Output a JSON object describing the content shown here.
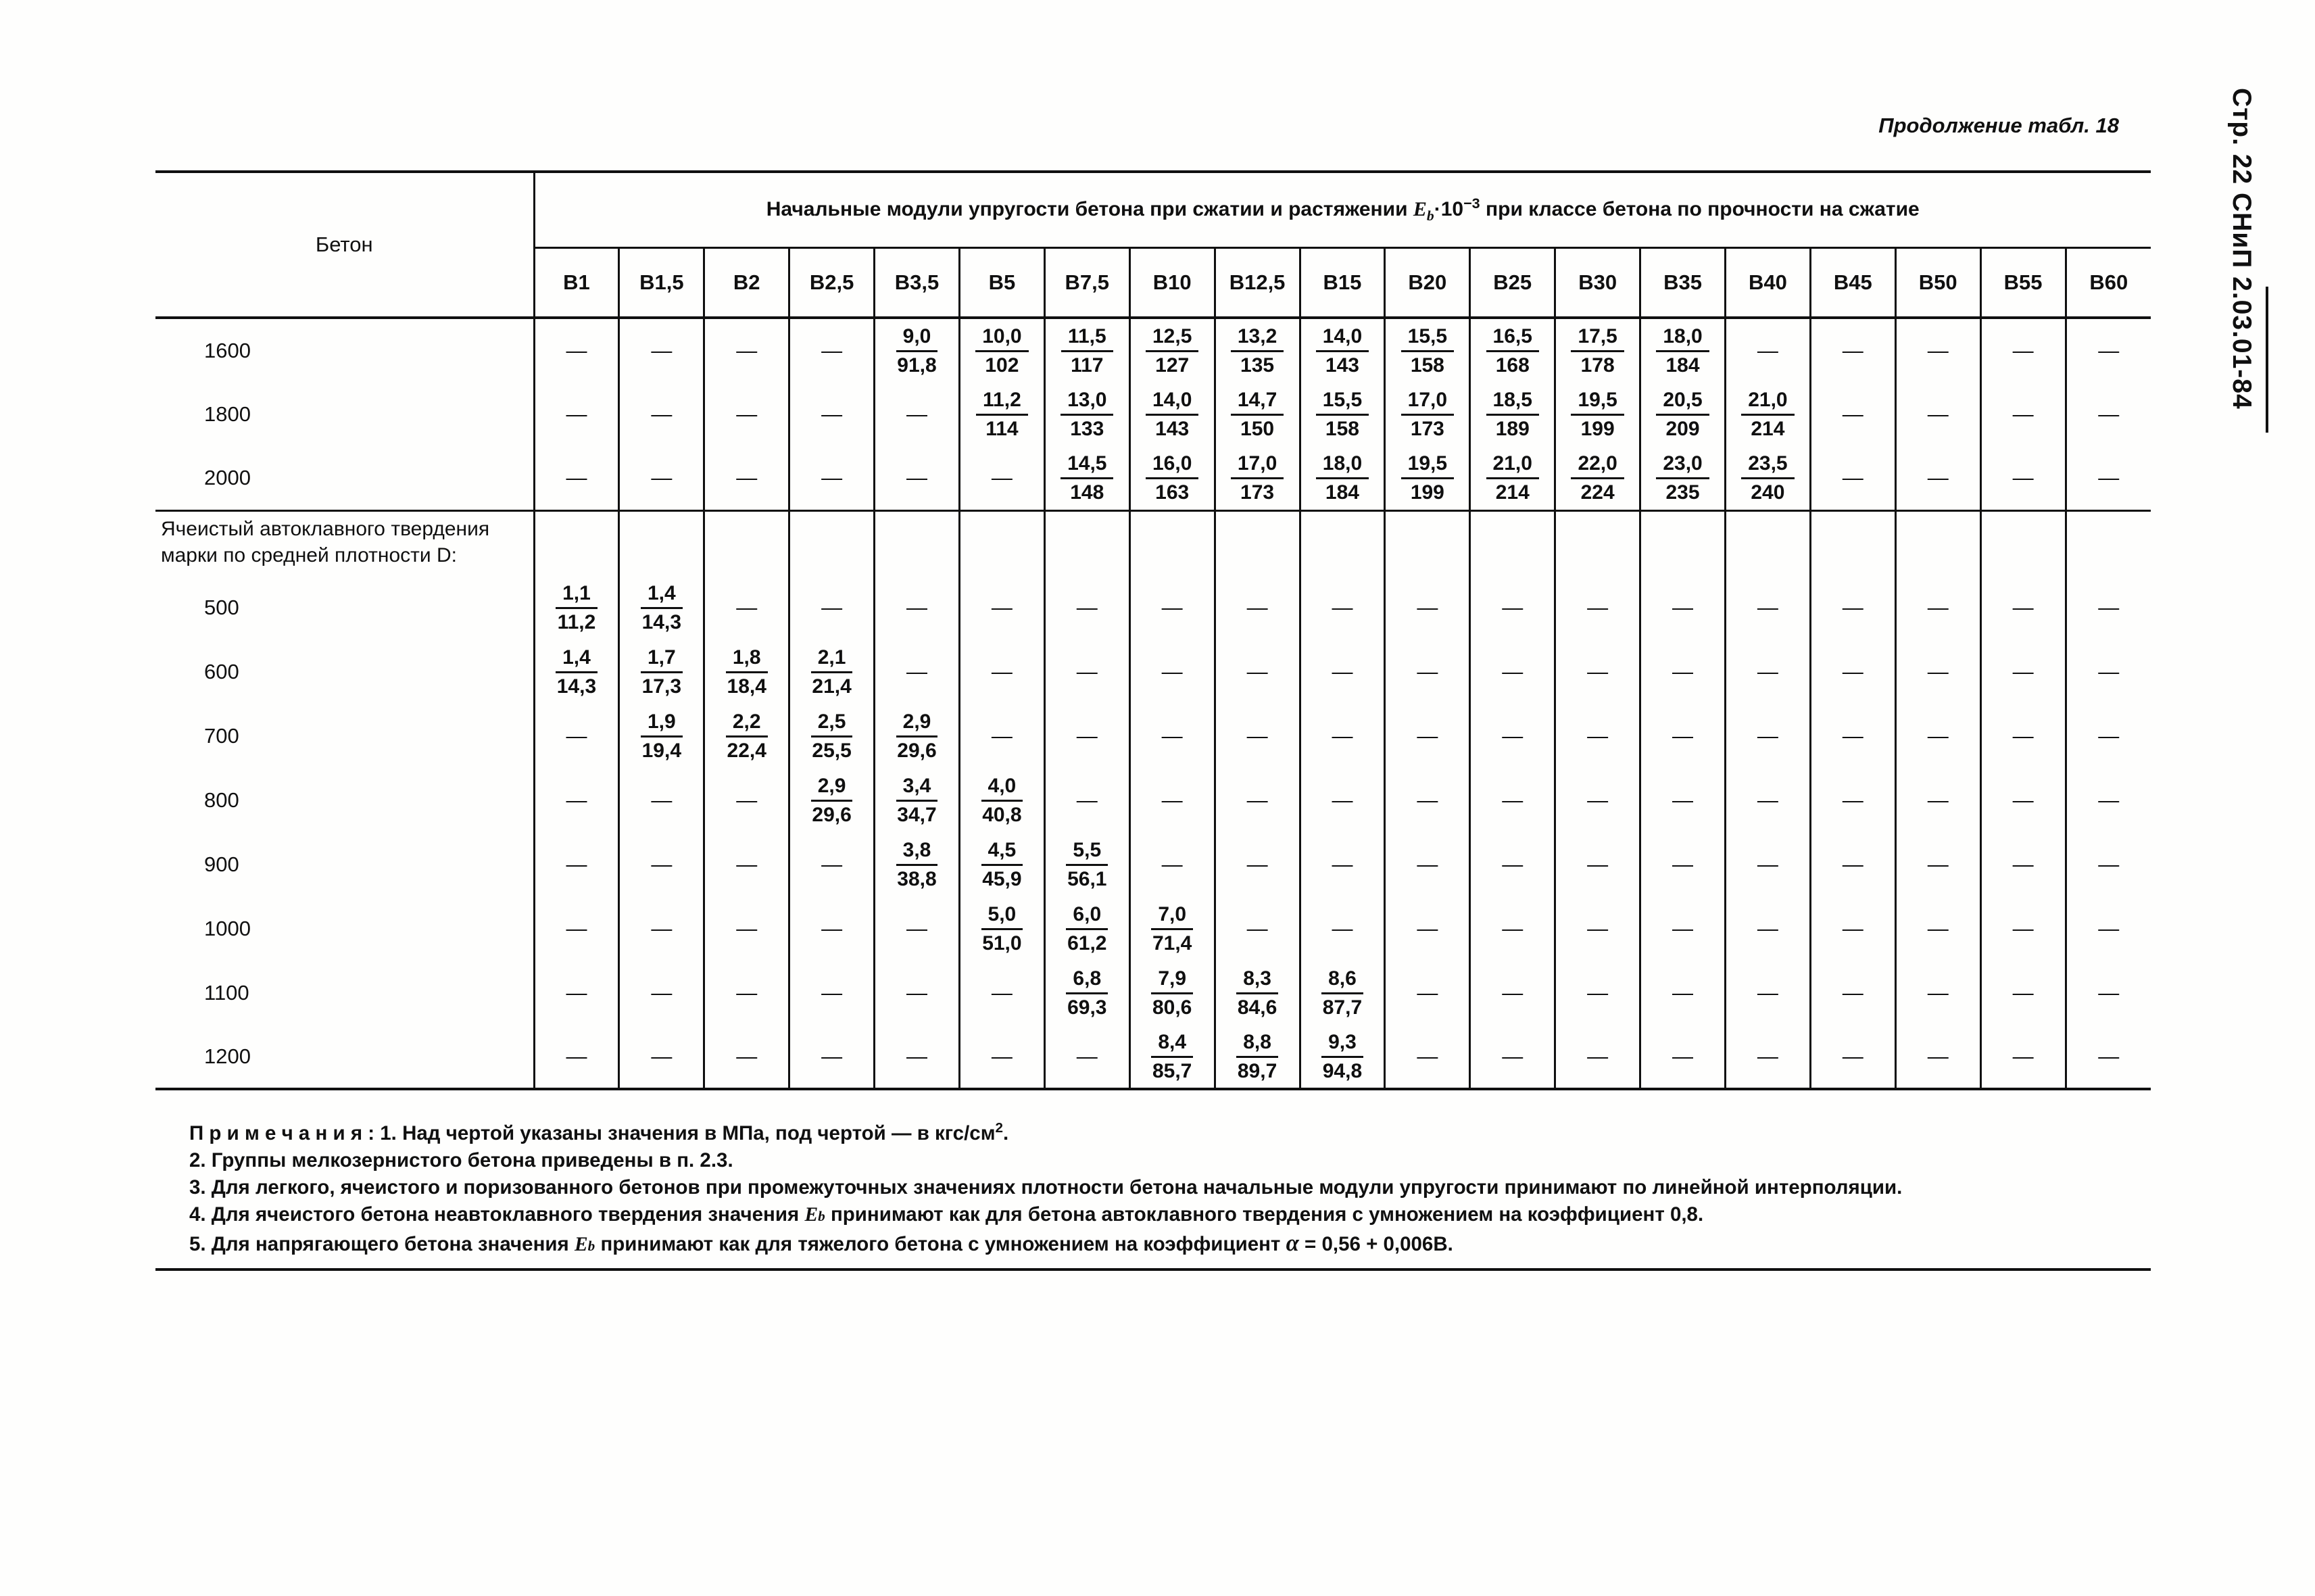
{
  "page": {
    "continuation": "Продолжение табл. 18",
    "side_label": "Стр. 22  СНиП 2.03.01-84"
  },
  "table": {
    "corner": "Бетон",
    "span_header": {
      "before": "Начальные модули упругости бетона при сжатии и растяжении ",
      "sym_e": "E",
      "sym_sub": "b",
      "sym_mid": "·10",
      "sym_sup": "−3",
      "after": " при классе бетона по прочности на сжатие"
    },
    "columns": [
      "В1",
      "В1,5",
      "В2",
      "В2,5",
      "В3,5",
      "В5",
      "В7,5",
      "В10",
      "В12,5",
      "В15",
      "В20",
      "В25",
      "В30",
      "В35",
      "В40",
      "В45",
      "В50",
      "В55",
      "В60"
    ],
    "dash": "—",
    "sections": [
      {
        "label": "",
        "rows": [
          {
            "label": "1600",
            "values": [
              "—",
              "—",
              "—",
              "—",
              "9,0/91,8",
              "10,0/102",
              "11,5/117",
              "12,5/127",
              "13,2/135",
              "14,0/143",
              "15,5/158",
              "16,5/168",
              "17,5/178",
              "18,0/184",
              "—",
              "—",
              "—",
              "—",
              "—"
            ]
          },
          {
            "label": "1800",
            "values": [
              "—",
              "—",
              "—",
              "—",
              "—",
              "11,2/114",
              "13,0/133",
              "14,0/143",
              "14,7/150",
              "15,5/158",
              "17,0/173",
              "18,5/189",
              "19,5/199",
              "20,5/209",
              "21,0/214",
              "—",
              "—",
              "—",
              "—"
            ]
          },
          {
            "label": "2000",
            "values": [
              "—",
              "—",
              "—",
              "—",
              "—",
              "—",
              "14,5/148",
              "16,0/163",
              "17,0/173",
              "18,0/184",
              "19,5/199",
              "21,0/214",
              "22,0/224",
              "23,0/235",
              "23,5/240",
              "—",
              "—",
              "—",
              "—"
            ]
          }
        ]
      },
      {
        "label": "Ячеистый автоклавного твердения\nмарки по средней плотности D:",
        "rows": [
          {
            "label": "500",
            "values": [
              "1,1/11,2",
              "1,4/14,3",
              "—",
              "—",
              "—",
              "—",
              "—",
              "—",
              "—",
              "—",
              "—",
              "—",
              "—",
              "—",
              "—",
              "—",
              "—",
              "—",
              "—"
            ]
          },
          {
            "label": "600",
            "values": [
              "1,4/14,3",
              "1,7/17,3",
              "1,8/18,4",
              "2,1/21,4",
              "—",
              "—",
              "—",
              "—",
              "—",
              "—",
              "—",
              "—",
              "—",
              "—",
              "—",
              "—",
              "—",
              "—",
              "—"
            ]
          },
          {
            "label": "700",
            "values": [
              "—",
              "1,9/19,4",
              "2,2/22,4",
              "2,5/25,5",
              "2,9/29,6",
              "—",
              "—",
              "—",
              "—",
              "—",
              "—",
              "—",
              "—",
              "—",
              "—",
              "—",
              "—",
              "—",
              "—"
            ]
          },
          {
            "label": "800",
            "values": [
              "—",
              "—",
              "—",
              "2,9/29,6",
              "3,4/34,7",
              "4,0/40,8",
              "—",
              "—",
              "—",
              "—",
              "—",
              "—",
              "—",
              "—",
              "—",
              "—",
              "—",
              "—",
              "—"
            ]
          },
          {
            "label": "900",
            "values": [
              "—",
              "—",
              "—",
              "—",
              "3,8/38,8",
              "4,5/45,9",
              "5,5/56,1",
              "—",
              "—",
              "—",
              "—",
              "—",
              "—",
              "—",
              "—",
              "—",
              "—",
              "—",
              "—"
            ]
          },
          {
            "label": "1000",
            "values": [
              "—",
              "—",
              "—",
              "—",
              "—",
              "5,0/51,0",
              "6,0/61,2",
              "7,0/71,4",
              "—",
              "—",
              "—",
              "—",
              "—",
              "—",
              "—",
              "—",
              "—",
              "—",
              "—"
            ]
          },
          {
            "label": "1100",
            "values": [
              "—",
              "—",
              "—",
              "—",
              "—",
              "—",
              "6,8/69,3",
              "7,9/80,6",
              "8,3/84,6",
              "8,6/87,7",
              "—",
              "—",
              "—",
              "—",
              "—",
              "—",
              "—",
              "—",
              "—"
            ]
          },
          {
            "label": "1200",
            "values": [
              "—",
              "—",
              "—",
              "—",
              "—",
              "—",
              "—",
              "8,4/85,7",
              "8,8/89,7",
              "9,3/94,8",
              "—",
              "—",
              "—",
              "—",
              "—",
              "—",
              "—",
              "—",
              "—"
            ]
          }
        ]
      }
    ]
  },
  "notes": [
    [
      {
        "t": "П р и м е ч а н и я :  1. Над чертой указаны значения в МПа, под чертой — в кгс/см"
      },
      {
        "t": "2",
        "s": "sup"
      },
      {
        "t": "."
      }
    ],
    [
      {
        "t": "2. Группы мелкозернистого бетона приведены в п. 2.3."
      }
    ],
    [
      {
        "t": "3. Для легкого, ячеистого и поризованного бетонов при промежуточных значениях плотности бетона начальные модули упругости принимают по линейной интерполяции."
      }
    ],
    [
      {
        "t": "4. Для ячеистого бетона неавтоклавного твердения значения "
      },
      {
        "t": "E",
        "s": "ei"
      },
      {
        "t": "b",
        "s": "esub"
      },
      {
        "t": " принимают как для бетона автоклавного твердения с умножением на коэффициент 0,8."
      }
    ],
    [
      {
        "t": "5. Для напрягающего бетона значения "
      },
      {
        "t": "E",
        "s": "ei"
      },
      {
        "t": "b",
        "s": "esub"
      },
      {
        "t": " принимают как для тяжелого бетона с умножением на коэффициент "
      },
      {
        "t": "α",
        "s": "alpha"
      },
      {
        "t": " = 0,56 + 0,006В."
      }
    ]
  ]
}
